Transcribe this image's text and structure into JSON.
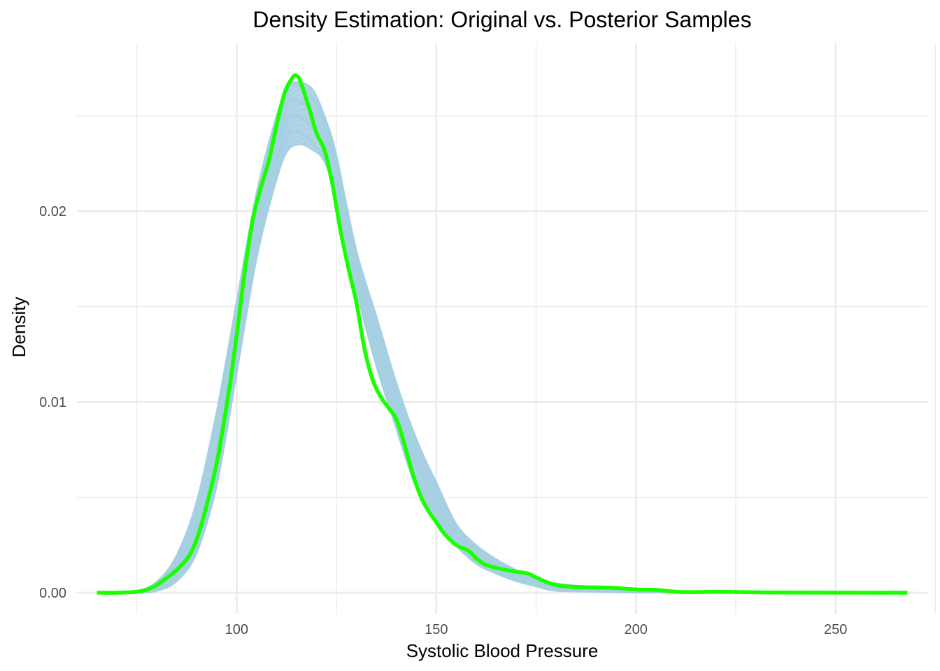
{
  "chart_data": {
    "type": "line",
    "title": "Density Estimation: Original vs. Posterior Samples",
    "xlabel": "Systolic Blood Pressure",
    "ylabel": "Density",
    "xlim": [
      60,
      273
    ],
    "ylim": [
      -0.0011,
      0.0288
    ],
    "x_ticks": [
      100,
      150,
      200,
      250
    ],
    "x_tick_labels": [
      "100",
      "150",
      "200",
      "250"
    ],
    "y_ticks": [
      0.0,
      0.01,
      0.02
    ],
    "y_tick_labels": [
      "0.00",
      "0.01",
      "0.02"
    ],
    "grid": true,
    "legend": "none",
    "colors": {
      "posterior": "#a6cfe2",
      "original": "#1aff00",
      "grid": "#ebebeb",
      "tick_text": "#4d4d4d"
    },
    "series": [
      {
        "role": "posterior-envelope-upper",
        "color": "#a6cfe2",
        "x": [
          65,
          75,
          80,
          85,
          90,
          95,
          100,
          105,
          110,
          113,
          116,
          119,
          122,
          125,
          130,
          135,
          140,
          145,
          150,
          155,
          160,
          165,
          170,
          175,
          180,
          190,
          200,
          210,
          220,
          268
        ],
        "values": [
          0,
          0.0001,
          0.0006,
          0.002,
          0.0048,
          0.0095,
          0.0155,
          0.021,
          0.025,
          0.0266,
          0.0268,
          0.0264,
          0.025,
          0.023,
          0.018,
          0.0145,
          0.011,
          0.0082,
          0.0058,
          0.0036,
          0.0025,
          0.0018,
          0.0012,
          0.0008,
          0.0005,
          0.0003,
          0.00015,
          0.0001,
          5e-05,
          0
        ]
      },
      {
        "role": "posterior-envelope-lower",
        "color": "#a6cfe2",
        "x": [
          65,
          75,
          80,
          85,
          90,
          95,
          100,
          105,
          110,
          113,
          116,
          119,
          122,
          125,
          130,
          135,
          140,
          145,
          150,
          155,
          160,
          165,
          170,
          175,
          180,
          190,
          200,
          210,
          220,
          268
        ],
        "values": [
          0,
          0,
          0.0001,
          0.0006,
          0.002,
          0.0055,
          0.0115,
          0.0175,
          0.0215,
          0.0232,
          0.0235,
          0.0232,
          0.0225,
          0.0205,
          0.0158,
          0.0118,
          0.0085,
          0.0055,
          0.0038,
          0.0024,
          0.0015,
          0.001,
          0.0006,
          0.0003,
          0.0001,
          5e-05,
          0,
          0,
          0,
          0
        ]
      },
      {
        "role": "original",
        "color": "#1aff00",
        "x": [
          65,
          70,
          75,
          78,
          80,
          82,
          85,
          88,
          90,
          92,
          95,
          98,
          100,
          102,
          104,
          106,
          108,
          110,
          112,
          114,
          115,
          116,
          118,
          120,
          122,
          124,
          126,
          128,
          130,
          132,
          134,
          136,
          138,
          140,
          142,
          144,
          146,
          148,
          150,
          152,
          155,
          158,
          160,
          162,
          165,
          170,
          173,
          176,
          180,
          185,
          190,
          195,
          200,
          205,
          210,
          215,
          220,
          230,
          240,
          268
        ],
        "values": [
          0,
          0,
          5e-05,
          0.0002,
          0.0004,
          0.0007,
          0.0012,
          0.0019,
          0.0028,
          0.0042,
          0.0068,
          0.0105,
          0.0135,
          0.0168,
          0.0195,
          0.0212,
          0.0226,
          0.0245,
          0.0262,
          0.027,
          0.0271,
          0.0268,
          0.0255,
          0.0241,
          0.0232,
          0.0214,
          0.019,
          0.017,
          0.0152,
          0.0128,
          0.0112,
          0.0103,
          0.0097,
          0.0091,
          0.0078,
          0.0063,
          0.0051,
          0.0043,
          0.0037,
          0.0031,
          0.0025,
          0.0022,
          0.0018,
          0.0015,
          0.0013,
          0.0011,
          0.001,
          0.0007,
          0.0004,
          0.0003,
          0.00028,
          0.00025,
          0.00017,
          0.00015,
          5e-05,
          3e-05,
          5e-05,
          2e-05,
          1e-05,
          0
        ]
      }
    ]
  }
}
